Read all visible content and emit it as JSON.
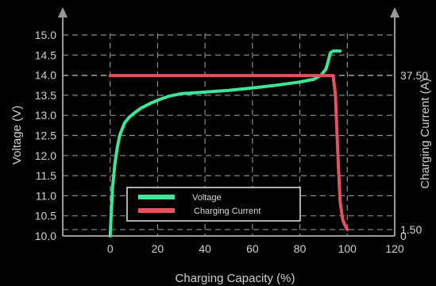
{
  "chart_data": {
    "type": "line",
    "xlabel": "Charging Capacity (%)",
    "ylabel": "Voltage (V)",
    "y2label": "Charging Current (A)",
    "xlim": [
      -20,
      120
    ],
    "ylim": [
      10.0,
      15.0
    ],
    "y2lim": [
      0,
      47
    ],
    "x_ticks": [
      "0",
      "20",
      "40",
      "60",
      "80",
      "100",
      "120"
    ],
    "y_ticks": [
      "10.0",
      "10.5",
      "11.0",
      "11.5",
      "12.0",
      "12.5",
      "13.0",
      "13.5",
      "14.0",
      "14.5",
      "15.0"
    ],
    "y2_ticks": [
      "0",
      "1.50",
      "37.50"
    ],
    "grid": true,
    "legend_position": "bottom-center",
    "series": [
      {
        "name": "Voltage",
        "color": "#3fe69a",
        "axis": "left",
        "points": [
          [
            0,
            10.0
          ],
          [
            0.5,
            10.6
          ],
          [
            1,
            11.2
          ],
          [
            2,
            11.8
          ],
          [
            3,
            12.2
          ],
          [
            4,
            12.5
          ],
          [
            6,
            12.8
          ],
          [
            8,
            12.95
          ],
          [
            10,
            13.05
          ],
          [
            13,
            13.18
          ],
          [
            17,
            13.3
          ],
          [
            21,
            13.4
          ],
          [
            25,
            13.48
          ],
          [
            30,
            13.54
          ],
          [
            40,
            13.58
          ],
          [
            50,
            13.62
          ],
          [
            60,
            13.68
          ],
          [
            70,
            13.75
          ],
          [
            80,
            13.83
          ],
          [
            86,
            13.9
          ],
          [
            89,
            14.0
          ],
          [
            91,
            14.15
          ],
          [
            92,
            14.35
          ],
          [
            92.8,
            14.55
          ],
          [
            94,
            14.6
          ],
          [
            97,
            14.6
          ]
        ]
      },
      {
        "name": "Charging Current",
        "color": "#e8515c",
        "axis": "right",
        "points": [
          [
            0,
            37.5
          ],
          [
            94,
            37.5
          ],
          [
            95,
            33
          ],
          [
            95.6,
            25
          ],
          [
            96.3,
            16
          ],
          [
            97,
            8
          ],
          [
            98,
            4
          ],
          [
            99,
            2.5
          ],
          [
            100,
            1.5
          ]
        ]
      }
    ]
  }
}
